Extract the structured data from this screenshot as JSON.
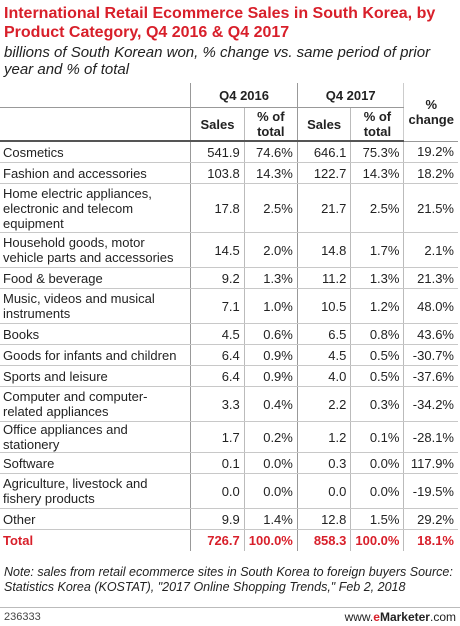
{
  "title": "International Retail Ecommerce Sales in South Korea, by Product Category, Q4 2016 & Q4 2017",
  "subtitle": "billions of South Korean won, % change vs. same period of prior year and % of total",
  "headers": {
    "q4_2016": "Q4 2016",
    "q4_2017": "Q4 2017",
    "pct_change": "% change",
    "sales": "Sales",
    "pct_total": "% of total"
  },
  "chart_data": {
    "type": "table",
    "title": "International Retail Ecommerce Sales in South Korea, by Product Category, Q4 2016 & Q4 2017",
    "subtitle": "billions of South Korean won, % change vs. same period of prior year and % of total",
    "columns": [
      "Q4 2016 Sales",
      "Q4 2016 % of total",
      "Q4 2017 Sales",
      "Q4 2017 % of total",
      "% change"
    ],
    "rows": [
      {
        "category": "Cosmetics",
        "lines": 1,
        "s16": "541.9",
        "p16": "74.6%",
        "s17": "646.1",
        "p17": "75.3%",
        "chg": "19.2%"
      },
      {
        "category": "Fashion and accessories",
        "lines": 1,
        "s16": "103.8",
        "p16": "14.3%",
        "s17": "122.7",
        "p17": "14.3%",
        "chg": "18.2%"
      },
      {
        "category": "Home electric appliances, electronic and telecom equipment",
        "lines": 3,
        "s16": "17.8",
        "p16": "2.5%",
        "s17": "21.7",
        "p17": "2.5%",
        "chg": "21.5%"
      },
      {
        "category": "Household goods, motor vehicle parts and accessories",
        "lines": 2,
        "s16": "14.5",
        "p16": "2.0%",
        "s17": "14.8",
        "p17": "1.7%",
        "chg": "2.1%"
      },
      {
        "category": "Food & beverage",
        "lines": 1,
        "s16": "9.2",
        "p16": "1.3%",
        "s17": "11.2",
        "p17": "1.3%",
        "chg": "21.3%"
      },
      {
        "category": "Music, videos and musical instruments",
        "lines": 2,
        "s16": "7.1",
        "p16": "1.0%",
        "s17": "10.5",
        "p17": "1.2%",
        "chg": "48.0%"
      },
      {
        "category": "Books",
        "lines": 1,
        "s16": "4.5",
        "p16": "0.6%",
        "s17": "6.5",
        "p17": "0.8%",
        "chg": "43.6%"
      },
      {
        "category": "Goods for infants and children",
        "lines": 1,
        "s16": "6.4",
        "p16": "0.9%",
        "s17": "4.5",
        "p17": "0.5%",
        "chg": "-30.7%"
      },
      {
        "category": "Sports and leisure",
        "lines": 1,
        "s16": "6.4",
        "p16": "0.9%",
        "s17": "4.0",
        "p17": "0.5%",
        "chg": "-37.6%"
      },
      {
        "category": "Computer and computer-related appliances",
        "lines": 2,
        "s16": "3.3",
        "p16": "0.4%",
        "s17": "2.2",
        "p17": "0.3%",
        "chg": "-34.2%"
      },
      {
        "category": "Office appliances and stationery",
        "lines": 1,
        "s16": "1.7",
        "p16": "0.2%",
        "s17": "1.2",
        "p17": "0.1%",
        "chg": "-28.1%"
      },
      {
        "category": "Software",
        "lines": 1,
        "s16": "0.1",
        "p16": "0.0%",
        "s17": "0.3",
        "p17": "0.0%",
        "chg": "117.9%"
      },
      {
        "category": "Agriculture, livestock and fishery products",
        "lines": 2,
        "s16": "0.0",
        "p16": "0.0%",
        "s17": "0.0",
        "p17": "0.0%",
        "chg": "-19.5%"
      },
      {
        "category": "Other",
        "lines": 1,
        "s16": "9.9",
        "p16": "1.4%",
        "s17": "12.8",
        "p17": "1.5%",
        "chg": "29.2%"
      }
    ],
    "total": {
      "category": "Total",
      "s16": "726.7",
      "p16": "100.0%",
      "s17": "858.3",
      "p17": "100.0%",
      "chg": "18.1%"
    }
  },
  "note": "Note: sales from retail ecommerce sites in South Korea to foreign buyers Source: Statistics Korea (KOSTAT), \"2017 Online Shopping Trends,\" Feb 2, 2018",
  "footer": {
    "id": "236333",
    "brand_prefix": "www.",
    "brand_e": "e",
    "brand_name": "Marketer",
    "brand_suffix": ".com"
  },
  "colors": {
    "accent": "#d81f2a",
    "text": "#222222"
  }
}
